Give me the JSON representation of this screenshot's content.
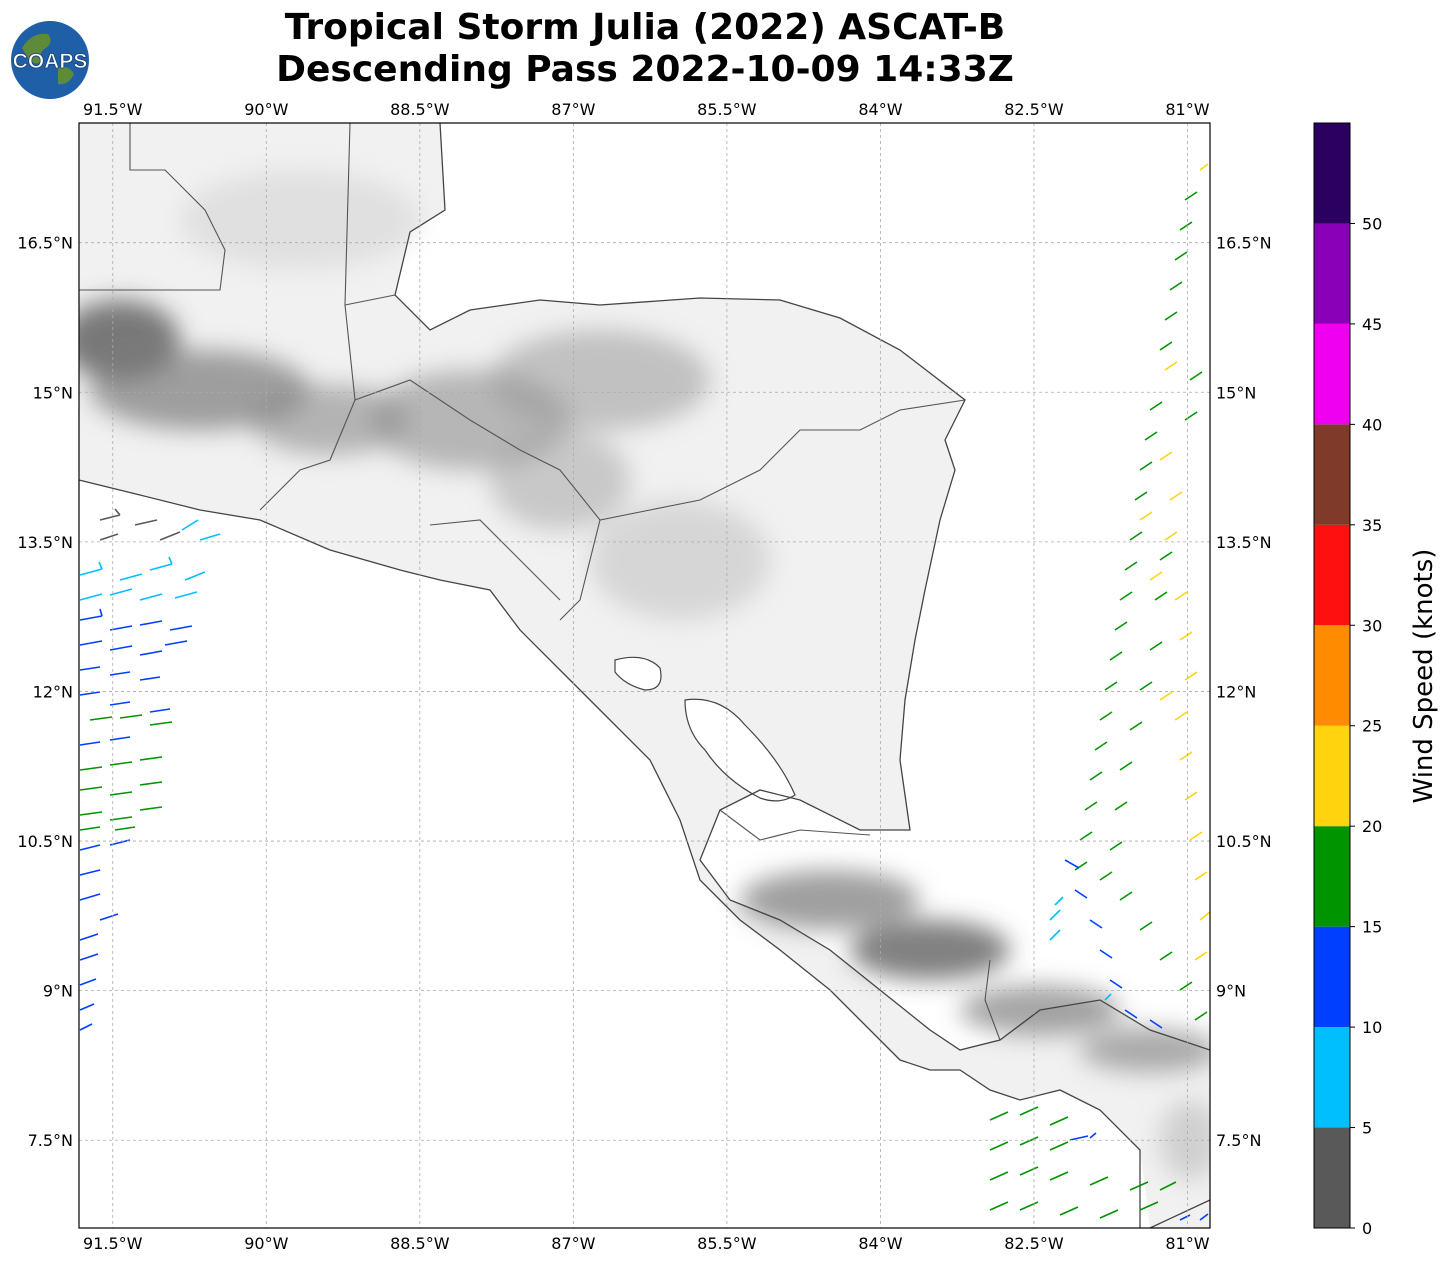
{
  "title": {
    "line1": "Tropical Storm Julia (2022) ASCAT-B",
    "line2": "Descending Pass 2022-10-09 14:33Z"
  },
  "logo": {
    "text": "COAPS",
    "ocean_color": "#1f5fa8",
    "land_color": "#5f8a3a"
  },
  "map": {
    "lon_ticks": [
      "91.5°W",
      "90°W",
      "88.5°W",
      "87°W",
      "85.5°W",
      "84°W",
      "82.5°W",
      "81°W"
    ],
    "lat_ticks": [
      "16.5°N",
      "15°N",
      "13.5°N",
      "12°N",
      "10.5°N",
      "9°N",
      "7.5°N"
    ],
    "lon_values": [
      -91.5,
      -90,
      -88.5,
      -87,
      -85.5,
      -84,
      -82.5,
      -81
    ],
    "lat_values": [
      16.5,
      15,
      13.5,
      12,
      10.5,
      9,
      7.5
    ],
    "extent": {
      "lon_min": -91.83,
      "lon_max": -80.78,
      "lat_min": 6.62,
      "lat_max": 17.7
    },
    "gridlines": true,
    "background": "grayscale topography",
    "coastline_color": "#444444"
  },
  "colorbar": {
    "label": "Wind Speed (knots)",
    "ticks": [
      "0",
      "5",
      "10",
      "15",
      "20",
      "25",
      "30",
      "35",
      "40",
      "45",
      "50"
    ],
    "bins": [
      {
        "min": 0,
        "max": 5,
        "color": "#595959"
      },
      {
        "min": 5,
        "max": 10,
        "color": "#00bfff"
      },
      {
        "min": 10,
        "max": 15,
        "color": "#003fff"
      },
      {
        "min": 15,
        "max": 20,
        "color": "#009400"
      },
      {
        "min": 20,
        "max": 25,
        "color": "#ffd40f"
      },
      {
        "min": 25,
        "max": 30,
        "color": "#ff8c00"
      },
      {
        "min": 30,
        "max": 35,
        "color": "#ff1010"
      },
      {
        "min": 35,
        "max": 40,
        "color": "#7f3a2a"
      },
      {
        "min": 40,
        "max": 45,
        "color": "#f000f0"
      },
      {
        "min": 45,
        "max": 50,
        "color": "#8a00b8"
      },
      {
        "min": 50,
        "max": 55,
        "color": "#2a0060"
      }
    ]
  }
}
